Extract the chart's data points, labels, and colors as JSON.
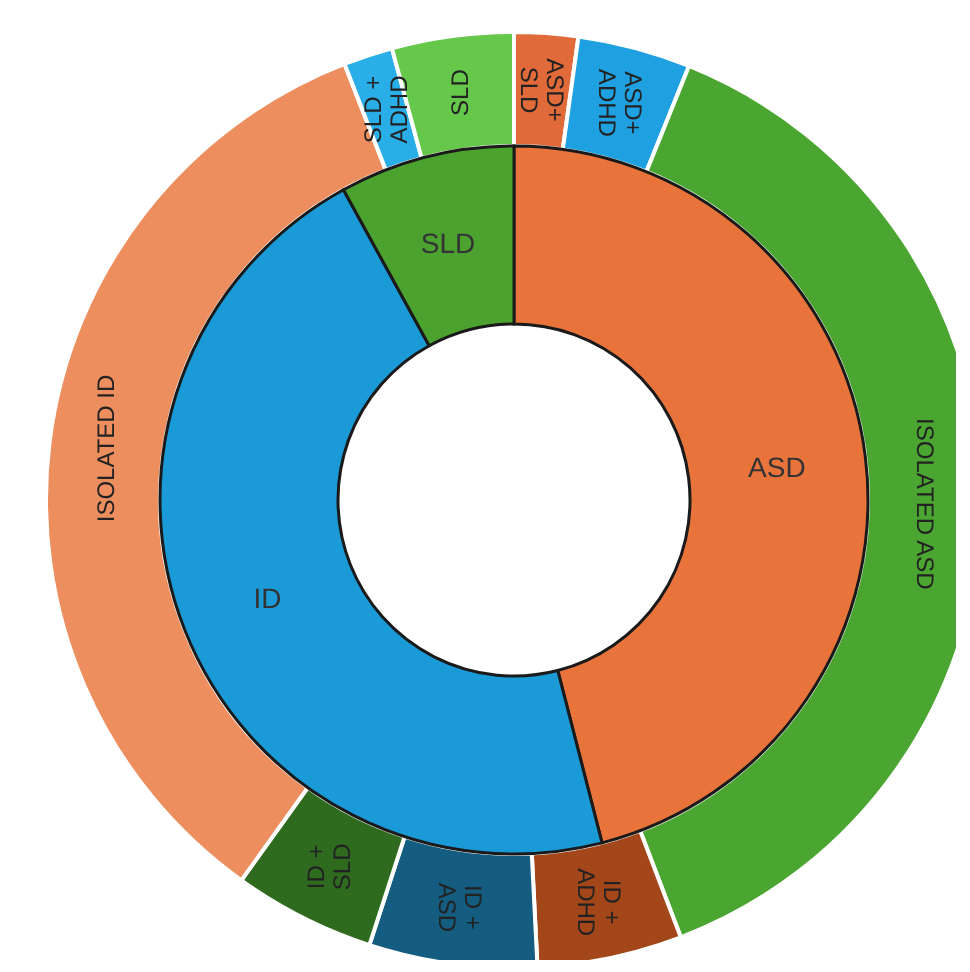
{
  "chart_data": [
    {
      "type": "donut",
      "legend": false,
      "categories": [
        "ASD",
        "ID",
        "SLD"
      ],
      "values": [
        46,
        46,
        8
      ],
      "colors": [
        "#e8743b",
        "#1a9ad6",
        "#4ca22f"
      ]
    },
    {
      "type": "donut",
      "legend": false,
      "categories": [
        "ASD+ SLD",
        "ASD+ ADHD",
        "ISOLATED ASD",
        "ID + ADHD",
        "ID + ASD",
        "ID + SLD",
        "ISOLATED ID",
        "SLD + ADHD",
        "SLD"
      ],
      "values": [
        2.2,
        3.9,
        38.1,
        5,
        5.8,
        4.9,
        34.2,
        1.7,
        4.2
      ],
      "colors": [
        "#e06a3a",
        "#1fa0e0",
        "#4aa630",
        "#a3461a",
        "#155d80",
        "#2e6b1f",
        "#ec8e5e",
        "#2aaee8",
        "#66c84a"
      ]
    }
  ]
}
